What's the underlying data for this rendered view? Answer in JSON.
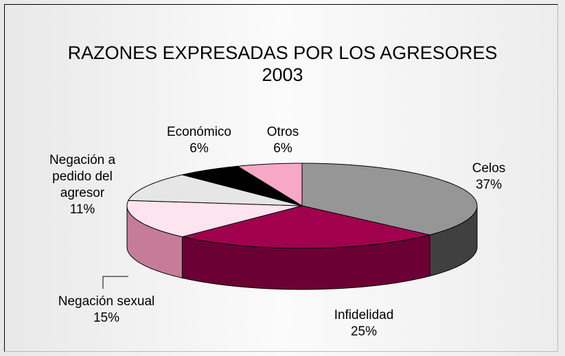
{
  "chart_data": {
    "type": "pie",
    "title": "RAZONES EXPRESADAS POR LOS AGRESORES",
    "subtitle": "2003",
    "categories": [
      "Celos",
      "Infidelidad",
      "Negación sexual",
      "Negación a pedido del agresor",
      "Económico",
      "Otros"
    ],
    "values": [
      37,
      25,
      15,
      11,
      6,
      6
    ],
    "value_labels": [
      "37%",
      "25%",
      "15%",
      "11%",
      "6%",
      "6%"
    ],
    "colors": [
      "#969696",
      "#a0004e",
      "#fde4ef",
      "#e6e6e6",
      "#000000",
      "#f7a8c4"
    ],
    "side_colors": [
      "#404040",
      "#6b0034",
      "#c67c98",
      "#9a9a9a",
      "#000000",
      "#b06a86"
    ]
  }
}
